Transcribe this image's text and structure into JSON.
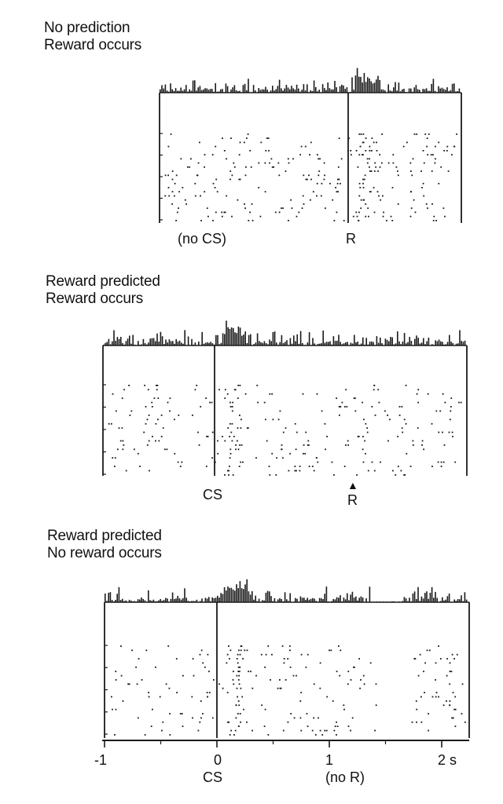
{
  "chart_data": [
    {
      "type": "raster-histogram",
      "condition_line1": "No prediction",
      "condition_line2": "Reward occurs",
      "event_markers": [
        {
          "label": "(no CS)",
          "time": -1
        },
        {
          "label": "R",
          "time": 0
        }
      ],
      "activation_after_reward": true,
      "activation_after_cs": false,
      "depression_after_expected_reward": false
    },
    {
      "type": "raster-histogram",
      "condition_line1": "Reward predicted",
      "condition_line2": "Reward occurs",
      "event_markers": [
        {
          "label": "CS",
          "time": 0
        },
        {
          "label": "R",
          "time": 1,
          "arrow": "▲"
        }
      ],
      "activation_after_reward": false,
      "activation_after_cs": true,
      "depression_after_expected_reward": false
    },
    {
      "type": "raster-histogram",
      "condition_line1": "Reward predicted",
      "condition_line2": "No reward occurs",
      "event_markers": [
        {
          "label": "CS",
          "time": 0
        },
        {
          "label": "(no R)",
          "time": 1
        }
      ],
      "activation_after_reward": false,
      "activation_after_cs": true,
      "depression_after_expected_reward": true,
      "xaxis": {
        "ticks": [
          {
            "value": -1,
            "label": "-1"
          },
          {
            "value": 0,
            "label": "0"
          },
          {
            "value": 1,
            "label": "1"
          },
          {
            "value": 2,
            "label": "2 s"
          }
        ],
        "range": [
          -1,
          2.2
        ]
      }
    }
  ]
}
